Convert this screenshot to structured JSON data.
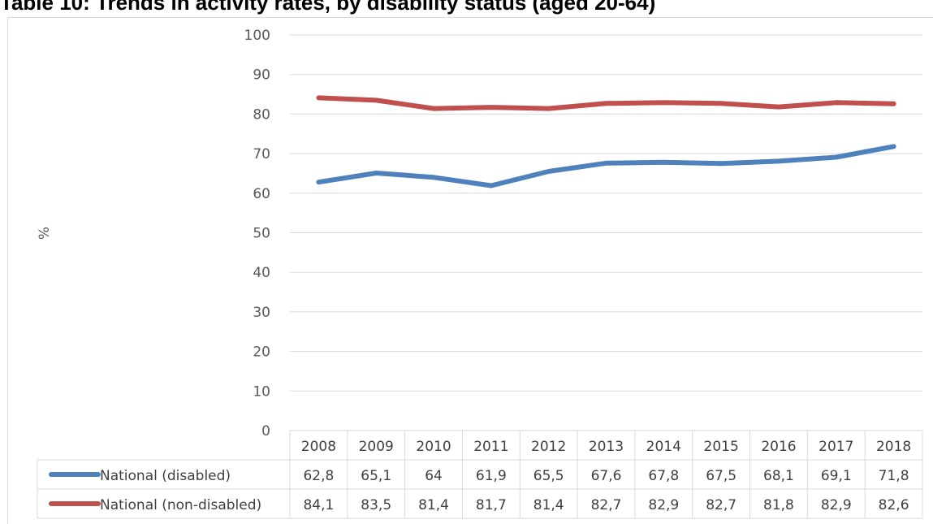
{
  "title": "Table 10: Trends in activity rates, by disability status (aged 20-64)",
  "chart_data": {
    "type": "line",
    "title": "Table 10: Trends in activity rates, by disability status (aged 20-64)",
    "xlabel": "",
    "ylabel": "%",
    "ylim": [
      0,
      100
    ],
    "yticks": [
      "0",
      "10",
      "20",
      "30",
      "40",
      "50",
      "60",
      "70",
      "80",
      "90",
      "100"
    ],
    "grid": true,
    "legend": "data table",
    "categories": [
      "2008",
      "2009",
      "2010",
      "2011",
      "2012",
      "2013",
      "2014",
      "2015",
      "2016",
      "2017",
      "2018"
    ],
    "series": [
      {
        "name": "National (disabled)",
        "color": "#4f81bd",
        "values": [
          62.8,
          65.1,
          64,
          61.9,
          65.5,
          67.6,
          67.8,
          67.5,
          68.1,
          69.1,
          71.8
        ],
        "labels": [
          "62,8",
          "65,1",
          "64",
          "61,9",
          "65,5",
          "67,6",
          "67,8",
          "67,5",
          "68,1",
          "69,1",
          "71,8"
        ]
      },
      {
        "name": "National (non-disabled)",
        "color": "#c0504d",
        "values": [
          84.1,
          83.5,
          81.4,
          81.7,
          81.4,
          82.7,
          82.9,
          82.7,
          81.8,
          82.9,
          82.6
        ],
        "labels": [
          "84,1",
          "83,5",
          "81,4",
          "81,7",
          "81,4",
          "82,7",
          "82,9",
          "82,7",
          "81,8",
          "82,9",
          "82,6"
        ]
      }
    ]
  }
}
